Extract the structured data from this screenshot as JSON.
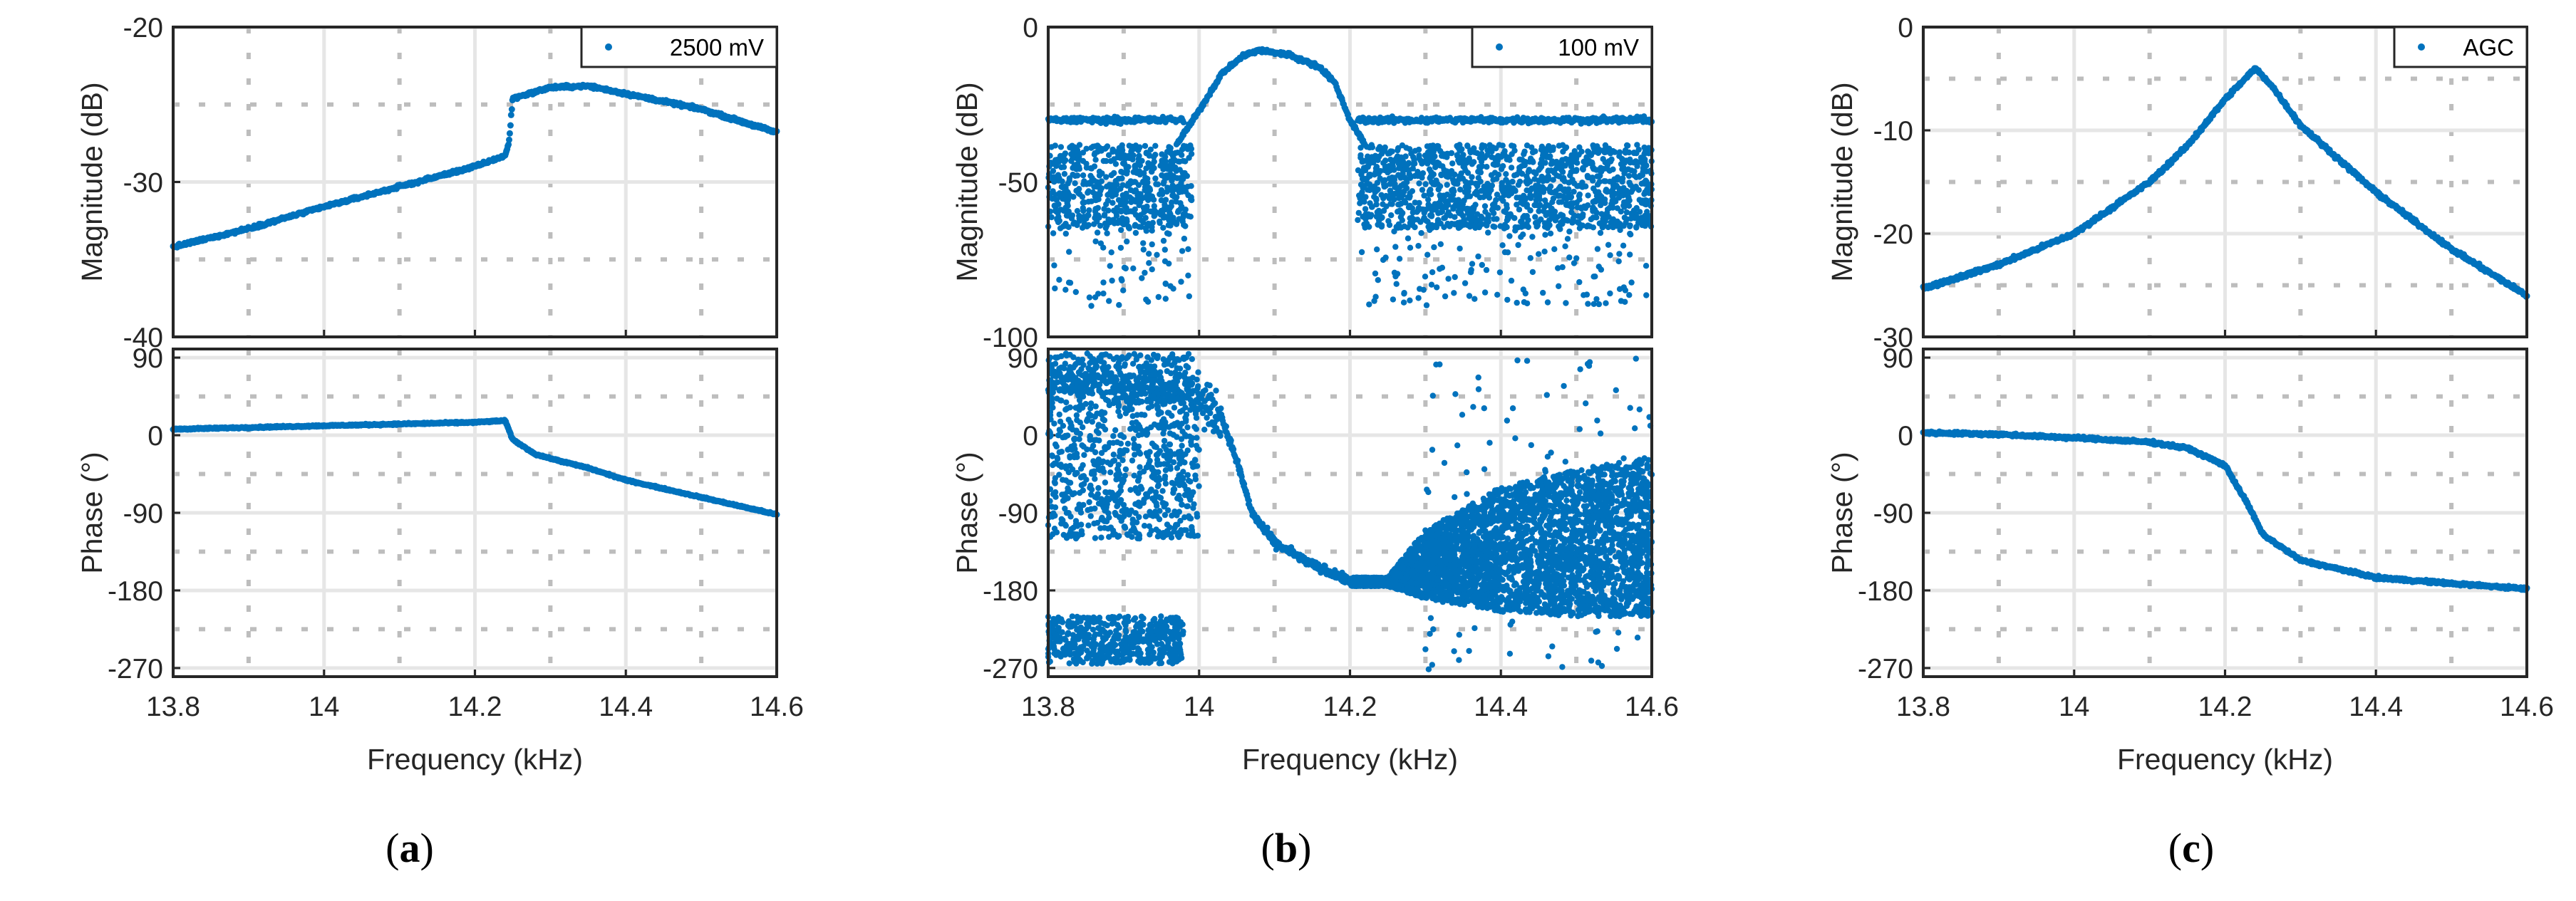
{
  "figure": {
    "panel_labels": [
      {
        "open": "(",
        "letter": "a",
        "close": ")"
      },
      {
        "open": "(",
        "letter": "b",
        "close": ")"
      },
      {
        "open": "(",
        "letter": "c",
        "close": ")"
      }
    ],
    "marker_color": "#0072BD",
    "grid_color": "#e6e6e6",
    "minor_grid_color": "#bdbdbd"
  },
  "chart_data": [
    {
      "panel": "a",
      "type": "scatter",
      "legend": "2500 mV",
      "legend_position": "top-right",
      "xlabel": "Frequency (kHz)",
      "xlim": [
        13.8,
        14.6
      ],
      "xticks": [
        13.8,
        14.0,
        14.2,
        14.4,
        14.6
      ],
      "xtick_labels": [
        "13.8",
        "14",
        "14.2",
        "14.4",
        "14.6"
      ],
      "magnitude": {
        "ylabel": "Magnitude (dB)",
        "ylim": [
          -40,
          -20
        ],
        "yticks": [
          -40,
          -30,
          -20
        ],
        "ytick_labels": [
          "-40",
          "-30",
          "-20"
        ],
        "curve": [
          [
            13.8,
            -34.2
          ],
          [
            13.9,
            -33.0
          ],
          [
            14.0,
            -31.6
          ],
          [
            14.1,
            -30.3
          ],
          [
            14.2,
            -29.0
          ],
          [
            14.24,
            -28.3
          ],
          [
            14.245,
            -27.5
          ],
          [
            14.25,
            -24.6
          ],
          [
            14.3,
            -23.9
          ],
          [
            14.35,
            -23.8
          ],
          [
            14.4,
            -24.3
          ],
          [
            14.5,
            -25.3
          ],
          [
            14.6,
            -26.8
          ]
        ]
      },
      "phase": {
        "ylabel": "Phase (°)",
        "ylim": [
          -280,
          100
        ],
        "yticks": [
          -270,
          -180,
          -90,
          0,
          90
        ],
        "ytick_labels": [
          "-270",
          "-180",
          "-90",
          "0",
          "90"
        ],
        "curve": [
          [
            13.8,
            7
          ],
          [
            13.9,
            9
          ],
          [
            14.0,
            11
          ],
          [
            14.1,
            13
          ],
          [
            14.2,
            15
          ],
          [
            14.24,
            17
          ],
          [
            14.25,
            -5
          ],
          [
            14.28,
            -22
          ],
          [
            14.3,
            -27
          ],
          [
            14.35,
            -38
          ],
          [
            14.4,
            -52
          ],
          [
            14.5,
            -72
          ],
          [
            14.6,
            -92
          ]
        ]
      }
    },
    {
      "panel": "b",
      "type": "scatter",
      "legend": "100 mV",
      "legend_position": "top-right",
      "xlabel": "Frequency (kHz)",
      "xlim": [
        13.8,
        14.6
      ],
      "xticks": [
        13.8,
        14.0,
        14.2,
        14.4,
        14.6
      ],
      "xtick_labels": [
        "13.8",
        "14",
        "14.2",
        "14.4",
        "14.6"
      ],
      "magnitude": {
        "ylabel": "Magnitude (dB)",
        "ylim": [
          -100,
          0
        ],
        "yticks": [
          -100,
          -50,
          0
        ],
        "ytick_labels": [
          "-100",
          "-50",
          "0"
        ],
        "upper_band_db": -30,
        "noise_band_db": [
          -65,
          -38
        ],
        "noise_outliers_db": [
          -90,
          -65
        ],
        "peak_curve": [
          [
            13.97,
            -38
          ],
          [
            14.0,
            -27
          ],
          [
            14.03,
            -15
          ],
          [
            14.06,
            -9
          ],
          [
            14.08,
            -7.5
          ],
          [
            14.12,
            -9
          ],
          [
            14.16,
            -13
          ],
          [
            14.18,
            -18
          ],
          [
            14.2,
            -30
          ],
          [
            14.22,
            -38
          ]
        ]
      },
      "phase": {
        "ylabel": "Phase (°)",
        "ylim": [
          -280,
          100
        ],
        "yticks": [
          -270,
          -180,
          -90,
          0,
          90
        ],
        "ytick_labels": [
          "-270",
          "-180",
          "-90",
          "0",
          "90"
        ],
        "curve": [
          [
            13.8,
            60
          ],
          [
            13.9,
            62
          ],
          [
            13.98,
            52
          ],
          [
            14.03,
            20
          ],
          [
            14.05,
            -30
          ],
          [
            14.07,
            -90
          ],
          [
            14.1,
            -125
          ],
          [
            14.15,
            -150
          ],
          [
            14.2,
            -170
          ],
          [
            14.25,
            -170
          ]
        ],
        "low_cluster": {
          "x": [
            13.8,
            13.98
          ],
          "y": [
            -265,
            -210
          ]
        },
        "scatter_band": {
          "x": [
            13.8,
            14.0
          ],
          "y": [
            -120,
            95
          ]
        },
        "fan_upper": [
          [
            14.25,
            -165
          ],
          [
            14.3,
            -110
          ],
          [
            14.4,
            -60
          ],
          [
            14.5,
            -40
          ],
          [
            14.6,
            -25
          ]
        ],
        "fan_lower": [
          [
            14.25,
            -175
          ],
          [
            14.3,
            -190
          ],
          [
            14.4,
            -205
          ],
          [
            14.5,
            -210
          ],
          [
            14.6,
            -210
          ]
        ]
      }
    },
    {
      "panel": "c",
      "type": "scatter",
      "legend": "AGC",
      "legend_position": "top-right",
      "xlabel": "Frequency (kHz)",
      "xlim": [
        13.8,
        14.6
      ],
      "xticks": [
        13.8,
        14.0,
        14.2,
        14.4,
        14.6
      ],
      "xtick_labels": [
        "13.8",
        "14",
        "14.2",
        "14.4",
        "14.6"
      ],
      "magnitude": {
        "ylabel": "Magnitude (dB)",
        "ylim": [
          -30,
          0
        ],
        "yticks": [
          -30,
          -20,
          -10,
          0
        ],
        "ytick_labels": [
          "-30",
          "-20",
          "-10",
          "0"
        ],
        "curve": [
          [
            13.8,
            -25.3
          ],
          [
            13.9,
            -23.0
          ],
          [
            14.0,
            -20.0
          ],
          [
            14.1,
            -15.0
          ],
          [
            14.15,
            -11.5
          ],
          [
            14.2,
            -7.0
          ],
          [
            14.24,
            -4.0
          ],
          [
            14.26,
            -5.5
          ],
          [
            14.3,
            -9.5
          ],
          [
            14.4,
            -16.0
          ],
          [
            14.5,
            -21.5
          ],
          [
            14.6,
            -26.0
          ]
        ]
      },
      "phase": {
        "ylabel": "Phase (°)",
        "ylim": [
          -280,
          100
        ],
        "yticks": [
          -270,
          -180,
          -90,
          0,
          90
        ],
        "ytick_labels": [
          "-270",
          "-180",
          "-90",
          "0",
          "90"
        ],
        "curve": [
          [
            13.8,
            3
          ],
          [
            13.9,
            1
          ],
          [
            14.0,
            -3
          ],
          [
            14.1,
            -8
          ],
          [
            14.15,
            -15
          ],
          [
            14.2,
            -35
          ],
          [
            14.23,
            -80
          ],
          [
            14.25,
            -115
          ],
          [
            14.3,
            -145
          ],
          [
            14.4,
            -165
          ],
          [
            14.5,
            -172
          ],
          [
            14.6,
            -178
          ]
        ]
      }
    }
  ]
}
